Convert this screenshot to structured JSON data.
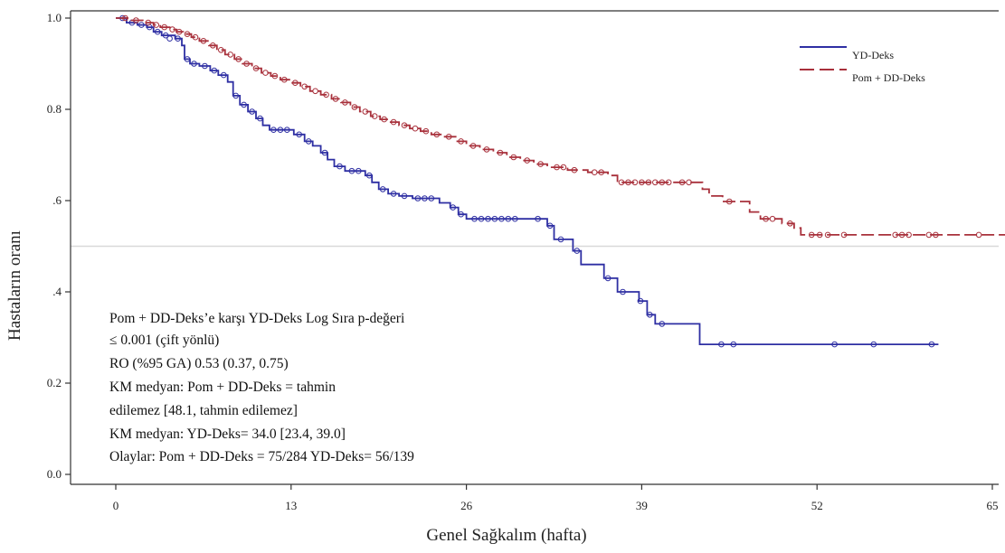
{
  "chart_data": {
    "type": "line",
    "title": "",
    "xlabel": "Genel Sağkalım (hafta)",
    "ylabel": "Hastaların oranı",
    "xlim": [
      0,
      65
    ],
    "ylim": [
      0,
      1
    ],
    "x_ticks": [
      0,
      13,
      26,
      39,
      52,
      65
    ],
    "x_tick_labels": [
      "0",
      "13",
      "26",
      "39",
      "52",
      "65"
    ],
    "y_ticks": [
      0,
      0.2,
      0.4,
      0.6,
      0.8,
      1.0
    ],
    "y_tick_labels": [
      "0.0",
      "0.2",
      ".4",
      ".6",
      "0.8",
      "1.0"
    ],
    "grid": false,
    "reference_line": {
      "y": 0.5,
      "color": "#d9d9d9"
    },
    "legend_position": "top-right",
    "series": [
      {
        "name": "YD-Deks",
        "color": "#2e2fa3",
        "style": "solid",
        "steps": [
          [
            0,
            1.0
          ],
          [
            0.8,
            0.99
          ],
          [
            1.6,
            0.985
          ],
          [
            2.3,
            0.98
          ],
          [
            2.8,
            0.97
          ],
          [
            3.4,
            0.962
          ],
          [
            4.4,
            0.955
          ],
          [
            4.9,
            0.94
          ],
          [
            5.1,
            0.91
          ],
          [
            5.5,
            0.9
          ],
          [
            6.2,
            0.895
          ],
          [
            7.0,
            0.885
          ],
          [
            7.6,
            0.875
          ],
          [
            8.3,
            0.86
          ],
          [
            8.7,
            0.83
          ],
          [
            9.2,
            0.81
          ],
          [
            9.8,
            0.795
          ],
          [
            10.4,
            0.78
          ],
          [
            10.9,
            0.765
          ],
          [
            11.4,
            0.755
          ],
          [
            13.2,
            0.745
          ],
          [
            14.0,
            0.73
          ],
          [
            14.6,
            0.72
          ],
          [
            15.2,
            0.705
          ],
          [
            15.7,
            0.69
          ],
          [
            16.2,
            0.675
          ],
          [
            17.0,
            0.665
          ],
          [
            18.5,
            0.655
          ],
          [
            19.0,
            0.64
          ],
          [
            19.5,
            0.625
          ],
          [
            20.2,
            0.615
          ],
          [
            21.0,
            0.61
          ],
          [
            22.0,
            0.605
          ],
          [
            24.0,
            0.595
          ],
          [
            24.8,
            0.585
          ],
          [
            25.4,
            0.57
          ],
          [
            26.0,
            0.56
          ],
          [
            32.0,
            0.545
          ],
          [
            32.5,
            0.515
          ],
          [
            33.9,
            0.49
          ],
          [
            34.5,
            0.46
          ],
          [
            36.2,
            0.43
          ],
          [
            37.2,
            0.4
          ],
          [
            38.8,
            0.38
          ],
          [
            39.4,
            0.35
          ],
          [
            40.0,
            0.33
          ],
          [
            43.3,
            0.285
          ],
          [
            61.0,
            0.285
          ]
        ],
        "censored": [
          [
            0.5,
            1.0
          ],
          [
            1.2,
            0.99
          ],
          [
            1.9,
            0.985
          ],
          [
            2.5,
            0.98
          ],
          [
            3.1,
            0.97
          ],
          [
            3.7,
            0.962
          ],
          [
            4.0,
            0.955
          ],
          [
            4.6,
            0.955
          ],
          [
            5.3,
            0.91
          ],
          [
            5.8,
            0.9
          ],
          [
            6.6,
            0.895
          ],
          [
            7.3,
            0.885
          ],
          [
            8.0,
            0.875
          ],
          [
            8.9,
            0.83
          ],
          [
            9.5,
            0.81
          ],
          [
            10.1,
            0.795
          ],
          [
            10.7,
            0.78
          ],
          [
            11.7,
            0.755
          ],
          [
            12.2,
            0.755
          ],
          [
            12.7,
            0.755
          ],
          [
            13.6,
            0.745
          ],
          [
            14.3,
            0.73
          ],
          [
            15.5,
            0.705
          ],
          [
            16.6,
            0.675
          ],
          [
            17.5,
            0.665
          ],
          [
            18.0,
            0.665
          ],
          [
            18.8,
            0.655
          ],
          [
            19.8,
            0.625
          ],
          [
            20.6,
            0.615
          ],
          [
            21.4,
            0.61
          ],
          [
            22.4,
            0.605
          ],
          [
            22.9,
            0.605
          ],
          [
            23.4,
            0.605
          ],
          [
            25.0,
            0.585
          ],
          [
            25.6,
            0.57
          ],
          [
            26.6,
            0.56
          ],
          [
            27.1,
            0.56
          ],
          [
            27.6,
            0.56
          ],
          [
            28.1,
            0.56
          ],
          [
            28.6,
            0.56
          ],
          [
            29.1,
            0.56
          ],
          [
            29.6,
            0.56
          ],
          [
            31.3,
            0.56
          ],
          [
            32.2,
            0.545
          ],
          [
            33.0,
            0.515
          ],
          [
            34.2,
            0.49
          ],
          [
            36.5,
            0.43
          ],
          [
            37.6,
            0.4
          ],
          [
            38.9,
            0.38
          ],
          [
            39.6,
            0.35
          ],
          [
            40.5,
            0.33
          ],
          [
            44.9,
            0.285
          ],
          [
            45.8,
            0.285
          ],
          [
            53.3,
            0.285
          ],
          [
            56.2,
            0.285
          ],
          [
            60.5,
            0.285
          ]
        ]
      },
      {
        "name": "Pom + DD-Deks",
        "color": "#a8303b",
        "style": "dashed",
        "steps": [
          [
            0,
            1.0
          ],
          [
            1.1,
            0.995
          ],
          [
            2.0,
            0.99
          ],
          [
            2.8,
            0.985
          ],
          [
            3.3,
            0.98
          ],
          [
            4.0,
            0.975
          ],
          [
            4.5,
            0.97
          ],
          [
            5.0,
            0.965
          ],
          [
            5.6,
            0.958
          ],
          [
            6.2,
            0.95
          ],
          [
            6.9,
            0.94
          ],
          [
            7.5,
            0.93
          ],
          [
            8.1,
            0.92
          ],
          [
            8.8,
            0.91
          ],
          [
            9.4,
            0.9
          ],
          [
            10.1,
            0.89
          ],
          [
            10.8,
            0.88
          ],
          [
            11.5,
            0.873
          ],
          [
            12.2,
            0.865
          ],
          [
            13.0,
            0.858
          ],
          [
            13.7,
            0.85
          ],
          [
            14.4,
            0.84
          ],
          [
            15.2,
            0.832
          ],
          [
            16.0,
            0.823
          ],
          [
            16.7,
            0.815
          ],
          [
            17.4,
            0.805
          ],
          [
            18.1,
            0.795
          ],
          [
            18.9,
            0.785
          ],
          [
            19.6,
            0.778
          ],
          [
            20.3,
            0.772
          ],
          [
            21.0,
            0.765
          ],
          [
            21.8,
            0.758
          ],
          [
            22.6,
            0.752
          ],
          [
            23.4,
            0.745
          ],
          [
            24.3,
            0.74
          ],
          [
            25.2,
            0.73
          ],
          [
            26.0,
            0.72
          ],
          [
            27.0,
            0.712
          ],
          [
            28.0,
            0.705
          ],
          [
            29.0,
            0.695
          ],
          [
            30.0,
            0.688
          ],
          [
            31.0,
            0.68
          ],
          [
            32.0,
            0.673
          ],
          [
            33.5,
            0.667
          ],
          [
            35.0,
            0.662
          ],
          [
            36.5,
            0.655
          ],
          [
            37.2,
            0.64
          ],
          [
            43.5,
            0.625
          ],
          [
            44.0,
            0.61
          ],
          [
            45.0,
            0.598
          ],
          [
            47.0,
            0.575
          ],
          [
            47.8,
            0.56
          ],
          [
            49.4,
            0.55
          ],
          [
            50.3,
            0.54
          ],
          [
            50.8,
            0.525
          ],
          [
            66.0,
            0.525
          ]
        ],
        "censored": [
          [
            0.7,
            1.0
          ],
          [
            1.5,
            0.995
          ],
          [
            2.4,
            0.99
          ],
          [
            3.0,
            0.985
          ],
          [
            3.6,
            0.98
          ],
          [
            4.2,
            0.975
          ],
          [
            4.7,
            0.97
          ],
          [
            5.3,
            0.965
          ],
          [
            5.9,
            0.958
          ],
          [
            6.5,
            0.95
          ],
          [
            7.2,
            0.94
          ],
          [
            7.8,
            0.93
          ],
          [
            8.5,
            0.92
          ],
          [
            9.1,
            0.91
          ],
          [
            9.7,
            0.9
          ],
          [
            10.4,
            0.89
          ],
          [
            11.1,
            0.88
          ],
          [
            11.8,
            0.873
          ],
          [
            12.5,
            0.865
          ],
          [
            13.3,
            0.858
          ],
          [
            14.0,
            0.85
          ],
          [
            14.8,
            0.84
          ],
          [
            15.6,
            0.832
          ],
          [
            16.3,
            0.823
          ],
          [
            17.0,
            0.815
          ],
          [
            17.7,
            0.805
          ],
          [
            18.5,
            0.795
          ],
          [
            19.2,
            0.785
          ],
          [
            19.9,
            0.778
          ],
          [
            20.6,
            0.772
          ],
          [
            21.4,
            0.765
          ],
          [
            22.2,
            0.758
          ],
          [
            23.0,
            0.752
          ],
          [
            23.8,
            0.745
          ],
          [
            24.7,
            0.74
          ],
          [
            25.6,
            0.73
          ],
          [
            26.5,
            0.72
          ],
          [
            27.5,
            0.712
          ],
          [
            28.5,
            0.705
          ],
          [
            29.5,
            0.695
          ],
          [
            30.5,
            0.688
          ],
          [
            31.5,
            0.68
          ],
          [
            32.7,
            0.673
          ],
          [
            33.2,
            0.673
          ],
          [
            34.0,
            0.667
          ],
          [
            35.5,
            0.662
          ],
          [
            36.0,
            0.662
          ],
          [
            37.5,
            0.64
          ],
          [
            38.0,
            0.64
          ],
          [
            38.5,
            0.64
          ],
          [
            39.0,
            0.64
          ],
          [
            39.5,
            0.64
          ],
          [
            40.0,
            0.64
          ],
          [
            40.5,
            0.64
          ],
          [
            41.0,
            0.64
          ],
          [
            42.0,
            0.64
          ],
          [
            42.5,
            0.64
          ],
          [
            45.5,
            0.598
          ],
          [
            48.2,
            0.56
          ],
          [
            48.7,
            0.56
          ],
          [
            50.0,
            0.55
          ],
          [
            51.6,
            0.525
          ],
          [
            52.2,
            0.525
          ],
          [
            52.8,
            0.525
          ],
          [
            54.0,
            0.525
          ],
          [
            57.8,
            0.525
          ],
          [
            58.3,
            0.525
          ],
          [
            58.8,
            0.525
          ],
          [
            60.3,
            0.525
          ],
          [
            60.8,
            0.525
          ],
          [
            64.0,
            0.525
          ]
        ]
      }
    ],
    "annotation_lines": [
      "Pom + DD-Deks’e karşı YD-Deks Log Sıra p-değeri",
      "≤ 0.001 (çift yönlü)",
      "RO (%95 GA) 0.53 (0.37, 0.75)",
      "KM medyan: Pom + DD-Deks = tahmin",
      "edilemez [48.1, tahmin edilemez]",
      "KM medyan: YD-Deks= 34.0 [23.4, 39.0]",
      "Olaylar: Pom + DD-Deks = 75/284 YD-Deks= 56/139"
    ]
  }
}
